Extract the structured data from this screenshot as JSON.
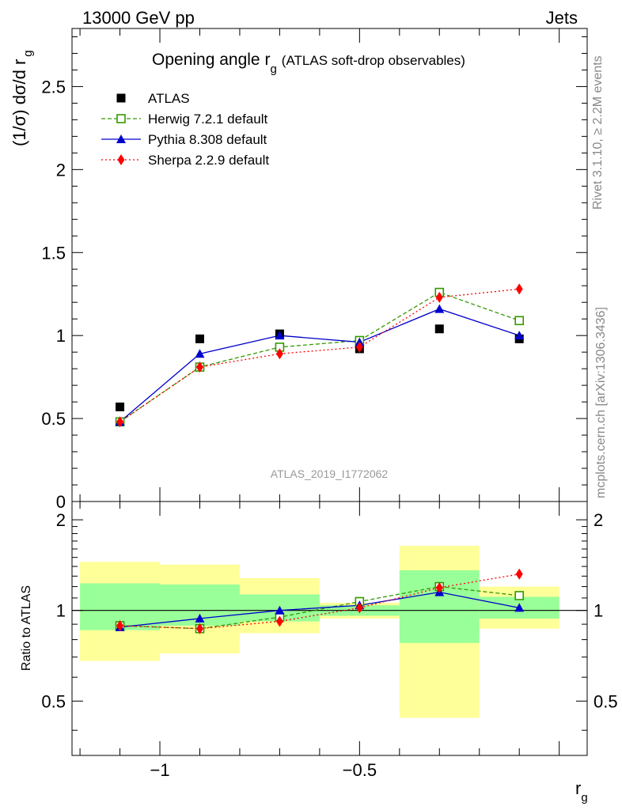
{
  "header": {
    "left": "13000 GeV pp",
    "right": "Jets"
  },
  "side_labels": {
    "rivet": "Rivet 3.1.10, ≥ 2.2M events",
    "mcplots": "mcplots.cern.ch [arXiv:1306.3436]"
  },
  "watermark": "ATLAS_2019_I1772062",
  "chart_data": [
    {
      "type": "scatter",
      "panel": "main",
      "title": "Opening angle r",
      "title_sub": "g",
      "title_suffix": "(ATLAS soft-drop observables)",
      "ylabel": "(1/σ) dσ/d r",
      "ylabel_sub": "g",
      "ylim": [
        0,
        2.85
      ],
      "yticks": [
        "0",
        "0.5",
        "1",
        "1.5",
        "2",
        "2.5"
      ],
      "ytick_values": [
        0,
        0.5,
        1,
        1.5,
        2,
        2.5
      ],
      "x": [
        -1.1,
        -0.9,
        -0.7,
        -0.5,
        -0.3,
        -0.1
      ],
      "series": [
        {
          "name": "ATLAS",
          "color": "#000000",
          "marker": "square-filled",
          "line": "none",
          "values": [
            0.57,
            0.98,
            1.01,
            0.92,
            1.04,
            0.98
          ]
        },
        {
          "name": "Herwig 7.2.1 default",
          "color": "#339900",
          "marker": "square-open",
          "line": "dashed",
          "values": [
            0.48,
            0.81,
            0.93,
            0.97,
            1.26,
            1.09
          ]
        },
        {
          "name": "Pythia 8.308 default",
          "color": "#0000cc",
          "marker": "triangle",
          "line": "solid",
          "values": [
            0.48,
            0.89,
            1.0,
            0.96,
            1.16,
            1.0
          ]
        },
        {
          "name": "Sherpa 2.2.9 default",
          "color": "#ff0000",
          "marker": "diamond",
          "line": "dotted",
          "values": [
            0.48,
            0.81,
            0.89,
            0.93,
            1.23,
            1.28
          ]
        }
      ]
    },
    {
      "type": "line",
      "panel": "ratio",
      "ylabel": "Ratio to ATLAS",
      "xlabel": "r",
      "xlabel_sub": "g",
      "xlim": [
        -1.22,
        0.07
      ],
      "xticks": [
        "−1",
        "−0.5"
      ],
      "xtick_values": [
        -1,
        -0.5
      ],
      "ylim": [
        0.33,
        2.3
      ],
      "yticks": [
        "0.5",
        "1",
        "2"
      ],
      "ytick_values": [
        0.5,
        1,
        2
      ],
      "bins": [
        [
          -1.2,
          -1.0
        ],
        [
          -1.0,
          -0.8
        ],
        [
          -0.8,
          -0.6
        ],
        [
          -0.6,
          -0.4
        ],
        [
          -0.4,
          -0.2
        ],
        [
          -0.2,
          0.0
        ]
      ],
      "band_colors": {
        "outer": "#ffff99",
        "inner": "#99ff99"
      },
      "outer_band": [
        [
          0.68,
          1.45
        ],
        [
          0.72,
          1.42
        ],
        [
          0.84,
          1.28
        ],
        [
          0.94,
          1.06
        ],
        [
          0.44,
          1.64
        ],
        [
          0.87,
          1.2
        ]
      ],
      "inner_band": [
        [
          0.86,
          1.23
        ],
        [
          0.89,
          1.22
        ],
        [
          0.92,
          1.13
        ],
        [
          0.96,
          1.04
        ],
        [
          0.78,
          1.36
        ],
        [
          0.94,
          1.11
        ]
      ],
      "x": [
        -1.1,
        -0.9,
        -0.7,
        -0.5,
        -0.3,
        -0.1
      ],
      "series": [
        {
          "name": "Herwig 7.2.1 default",
          "color": "#339900",
          "marker": "square-open",
          "line": "dashed",
          "values": [
            0.89,
            0.87,
            0.95,
            1.07,
            1.2,
            1.12
          ]
        },
        {
          "name": "Pythia 8.308 default",
          "color": "#0000cc",
          "marker": "triangle",
          "line": "solid",
          "values": [
            0.88,
            0.94,
            1.0,
            1.04,
            1.15,
            1.02
          ]
        },
        {
          "name": "Sherpa 2.2.9 default",
          "color": "#ff0000",
          "marker": "diamond",
          "line": "dotted",
          "values": [
            0.89,
            0.87,
            0.92,
            1.02,
            1.19,
            1.32
          ]
        }
      ]
    }
  ]
}
